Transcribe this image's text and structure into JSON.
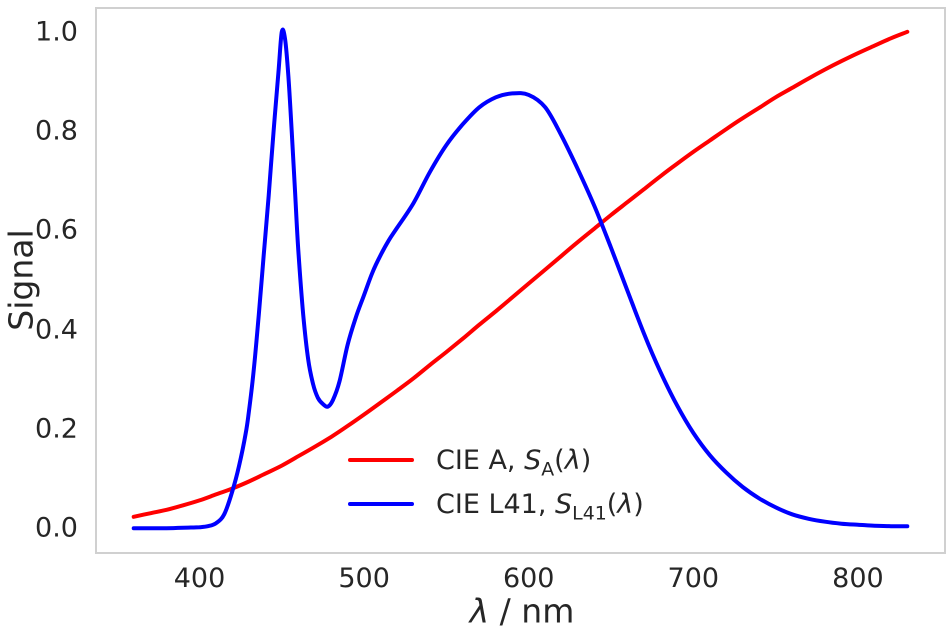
{
  "figure": {
    "background": "#ffffff",
    "axis_color": "#d0d0d0",
    "text_color": "#262626"
  },
  "chart_data": {
    "type": "line",
    "title": "",
    "ylabel": "Signal",
    "xlabel_parts": {
      "symbol": "λ",
      "rest": " / nm"
    },
    "xlim": [
      336.5,
      853.5
    ],
    "ylim": [
      -0.05,
      1.05
    ],
    "grid": false,
    "legend_position": "inside lower-center, no frame",
    "xticks": {
      "values": [
        400,
        500,
        600,
        700,
        800
      ],
      "labels": [
        "400",
        "500",
        "600",
        "700",
        "800"
      ]
    },
    "yticks": {
      "values": [
        0.0,
        0.2,
        0.4,
        0.6,
        0.8,
        1.0
      ],
      "labels": [
        "0.0",
        "0.2",
        "0.4",
        "0.6",
        "0.8",
        "1.0"
      ]
    },
    "series": [
      {
        "name": "CIE A",
        "color": "#ff0000",
        "legend": {
          "prefix": "CIE A, ",
          "symbol": "S",
          "subscript": "A",
          "paren_open": "(",
          "argument": "λ",
          "paren_close": ")",
          "label_plain": "CIE A, S_A(λ)"
        },
        "x": [
          360,
          370,
          380,
          390,
          400,
          410,
          420,
          430,
          440,
          450,
          460,
          470,
          480,
          490,
          500,
          510,
          520,
          530,
          540,
          550,
          560,
          570,
          580,
          590,
          600,
          610,
          620,
          630,
          640,
          650,
          660,
          670,
          680,
          690,
          700,
          710,
          720,
          730,
          740,
          750,
          760,
          770,
          780,
          790,
          800,
          810,
          820,
          830
        ],
        "y": [
          0.023,
          0.03,
          0.037,
          0.046,
          0.056,
          0.068,
          0.08,
          0.094,
          0.11,
          0.126,
          0.145,
          0.164,
          0.184,
          0.206,
          0.229,
          0.253,
          0.277,
          0.302,
          0.329,
          0.355,
          0.382,
          0.41,
          0.437,
          0.465,
          0.493,
          0.521,
          0.549,
          0.577,
          0.604,
          0.631,
          0.657,
          0.683,
          0.709,
          0.734,
          0.758,
          0.781,
          0.804,
          0.826,
          0.847,
          0.868,
          0.887,
          0.906,
          0.924,
          0.941,
          0.957,
          0.972,
          0.987,
          1.0
        ]
      },
      {
        "name": "CIE L41",
        "color": "#0000ff",
        "legend": {
          "prefix": "CIE L41, ",
          "symbol": "S",
          "subscript": "L41",
          "paren_open": "(",
          "argument": "λ",
          "paren_close": ")",
          "label_plain": "CIE L41, S_L41(λ)"
        },
        "x": [
          360,
          370,
          380,
          390,
          400,
          405,
          410,
          415,
          420,
          424,
          428,
          430,
          433,
          436,
          439,
          442,
          445,
          448,
          450,
          452,
          454,
          456,
          458,
          460,
          463,
          466,
          469,
          472,
          475,
          478,
          481,
          485,
          490,
          495,
          500,
          505,
          510,
          515,
          520,
          530,
          540,
          550,
          560,
          570,
          580,
          590,
          600,
          610,
          620,
          630,
          640,
          650,
          660,
          670,
          680,
          690,
          700,
          710,
          720,
          730,
          740,
          750,
          760,
          770,
          780,
          790,
          800,
          810,
          820,
          830
        ],
        "y": [
          0.0,
          0.0,
          0.0,
          0.001,
          0.002,
          0.004,
          0.01,
          0.028,
          0.075,
          0.125,
          0.19,
          0.235,
          0.32,
          0.43,
          0.55,
          0.67,
          0.8,
          0.92,
          1.0,
          0.985,
          0.91,
          0.8,
          0.68,
          0.56,
          0.43,
          0.34,
          0.29,
          0.262,
          0.25,
          0.245,
          0.258,
          0.295,
          0.37,
          0.425,
          0.47,
          0.515,
          0.55,
          0.58,
          0.605,
          0.655,
          0.718,
          0.772,
          0.814,
          0.848,
          0.868,
          0.876,
          0.873,
          0.848,
          0.79,
          0.722,
          0.648,
          0.565,
          0.478,
          0.392,
          0.315,
          0.248,
          0.192,
          0.147,
          0.112,
          0.083,
          0.06,
          0.042,
          0.028,
          0.019,
          0.013,
          0.009,
          0.007,
          0.005,
          0.004,
          0.004
        ]
      }
    ]
  }
}
